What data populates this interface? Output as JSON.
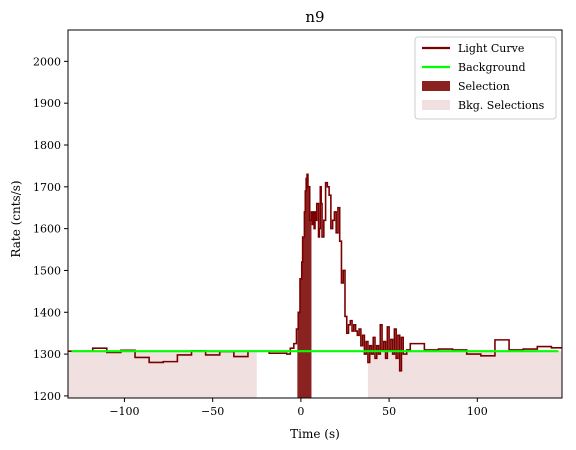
{
  "chart_data": {
    "type": "line",
    "title": "n9",
    "xlabel": "Time (s)",
    "ylabel": "Rate (cnts/s)",
    "xlim": [
      -132,
      148
    ],
    "ylim": [
      1195,
      2075
    ],
    "xticks": [
      -100,
      -50,
      0,
      50,
      100
    ],
    "yticks": [
      1200,
      1300,
      1400,
      1500,
      1600,
      1700,
      1800,
      1900,
      2000
    ],
    "grid": false,
    "legend_position": "top-right",
    "colors": {
      "light_curve": "#7a0000",
      "background": "#00ff00",
      "selection": "#8b2222",
      "bkg_selection": "#f0e0e0"
    },
    "background_level": 1307,
    "bkg_selections": [
      [
        -132,
        -25
      ],
      [
        38,
        148
      ]
    ],
    "selection": [
      -2,
      6
    ],
    "light_curve": {
      "name": "Light Curve",
      "steps": [
        [
          -132,
          1307
        ],
        [
          -118,
          1314
        ],
        [
          -110,
          1304
        ],
        [
          -102,
          1309
        ],
        [
          -94,
          1292
        ],
        [
          -86,
          1280
        ],
        [
          -78,
          1282
        ],
        [
          -70,
          1298
        ],
        [
          -62,
          1308
        ],
        [
          -54,
          1298
        ],
        [
          -46,
          1306
        ],
        [
          -38,
          1294
        ],
        [
          -30,
          1307
        ],
        [
          -18,
          1302
        ],
        [
          -8,
          1300
        ],
        [
          -6,
          1314
        ],
        [
          -4,
          1325
        ],
        [
          -2.5,
          1360
        ],
        [
          -1.5,
          1400
        ],
        [
          -0.5,
          1480
        ],
        [
          0.5,
          1520
        ],
        [
          1,
          1580
        ],
        [
          2,
          1640
        ],
        [
          2.5,
          1690
        ],
        [
          3,
          1720
        ],
        [
          3.5,
          1730
        ],
        [
          4,
          1700
        ],
        [
          5,
          1620
        ],
        [
          6,
          1640
        ],
        [
          6.5,
          1610
        ],
        [
          7,
          1640
        ],
        [
          7.5,
          1600
        ],
        [
          8,
          1640
        ],
        [
          8.5,
          1620
        ],
        [
          9,
          1660
        ],
        [
          10,
          1580
        ],
        [
          10.5,
          1600
        ],
        [
          11,
          1700
        ],
        [
          11.5,
          1660
        ],
        [
          12,
          1580
        ],
        [
          13,
          1620
        ],
        [
          14,
          1710
        ],
        [
          15,
          1700
        ],
        [
          16,
          1680
        ],
        [
          17,
          1600
        ],
        [
          18,
          1620
        ],
        [
          19,
          1640
        ],
        [
          20,
          1590
        ],
        [
          21,
          1650
        ],
        [
          22,
          1570
        ],
        [
          23,
          1470
        ],
        [
          24,
          1500
        ],
        [
          25,
          1390
        ],
        [
          26,
          1350
        ],
        [
          27,
          1370
        ],
        [
          28,
          1380
        ],
        [
          29,
          1355
        ],
        [
          30,
          1370
        ],
        [
          31,
          1355
        ],
        [
          32,
          1345
        ],
        [
          33,
          1360
        ],
        [
          34,
          1320
        ],
        [
          35,
          1345
        ],
        [
          36,
          1300
        ],
        [
          37,
          1330
        ],
        [
          38,
          1280
        ],
        [
          39,
          1320
        ],
        [
          40,
          1300
        ],
        [
          41,
          1340
        ],
        [
          42,
          1290
        ],
        [
          43,
          1320
        ],
        [
          44,
          1300
        ],
        [
          45,
          1370
        ],
        [
          46,
          1310
        ],
        [
          47,
          1330
        ],
        [
          48,
          1290
        ],
        [
          49,
          1365
        ],
        [
          50,
          1310
        ],
        [
          51,
          1335
        ],
        [
          52,
          1300
        ],
        [
          53,
          1360
        ],
        [
          54,
          1290
        ],
        [
          55,
          1345
        ],
        [
          56,
          1260
        ],
        [
          57,
          1340
        ],
        [
          58,
          1300
        ],
        [
          60,
          1310
        ],
        [
          62,
          1325
        ],
        [
          70,
          1310
        ],
        [
          78,
          1312
        ],
        [
          86,
          1310
        ],
        [
          94,
          1300
        ],
        [
          102,
          1296
        ],
        [
          110,
          1334
        ],
        [
          118,
          1310
        ],
        [
          126,
          1312
        ],
        [
          134,
          1318
        ],
        [
          142,
          1315
        ],
        [
          148,
          1315
        ]
      ]
    },
    "legend": [
      {
        "label": "Light Curve",
        "kind": "line",
        "color": "#7a0000"
      },
      {
        "label": "Background",
        "kind": "line",
        "color": "#00ff00"
      },
      {
        "label": "Selection",
        "kind": "patch",
        "color": "#8b2222"
      },
      {
        "label": "Bkg. Selections",
        "kind": "patch",
        "color": "#f0e0e0"
      }
    ]
  }
}
